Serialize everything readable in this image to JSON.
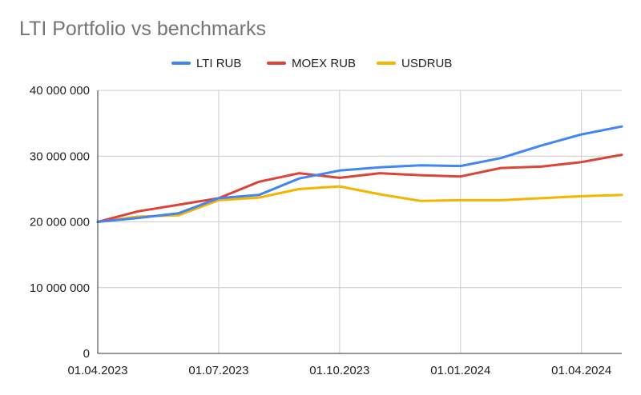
{
  "chart_data": {
    "type": "line",
    "title": "LTI Portfolio vs benchmarks",
    "xlabel": "",
    "ylabel": "",
    "x": [
      "01.04.2023",
      "01.05.2023",
      "01.06.2023",
      "01.07.2023",
      "01.08.2023",
      "01.09.2023",
      "01.10.2023",
      "01.11.2023",
      "01.12.2023",
      "01.01.2024",
      "01.02.2024",
      "01.03.2024",
      "01.04.2024",
      "01.05.2024"
    ],
    "x_tick_labels": [
      "01.04.2023",
      "01.07.2023",
      "01.10.2023",
      "01.01.2024",
      "01.04.2024"
    ],
    "y_tick_labels": [
      "0",
      "10 000 000",
      "20 000 000",
      "30 000 000",
      "40 000 000"
    ],
    "ylim": [
      0,
      40000000
    ],
    "grid": true,
    "legend_position": "top",
    "series": [
      {
        "name": "LTI RUB",
        "color": "#4285f4",
        "values": [
          20000000,
          20600000,
          21300000,
          23600000,
          24100000,
          26600000,
          27800000,
          28300000,
          28600000,
          28500000,
          29700000,
          31600000,
          33300000,
          34500000
        ]
      },
      {
        "name": "MOEX RUB",
        "color": "#db4437",
        "values": [
          20000000,
          21600000,
          22600000,
          23600000,
          26100000,
          27400000,
          26700000,
          27400000,
          27100000,
          26900000,
          28200000,
          28400000,
          29100000,
          30200000
        ]
      },
      {
        "name": "USDRUB",
        "color": "#f4b400",
        "values": [
          20000000,
          20800000,
          21000000,
          23300000,
          23700000,
          25000000,
          25400000,
          24200000,
          23200000,
          23300000,
          23300000,
          23600000,
          23900000,
          24100000
        ]
      }
    ]
  }
}
